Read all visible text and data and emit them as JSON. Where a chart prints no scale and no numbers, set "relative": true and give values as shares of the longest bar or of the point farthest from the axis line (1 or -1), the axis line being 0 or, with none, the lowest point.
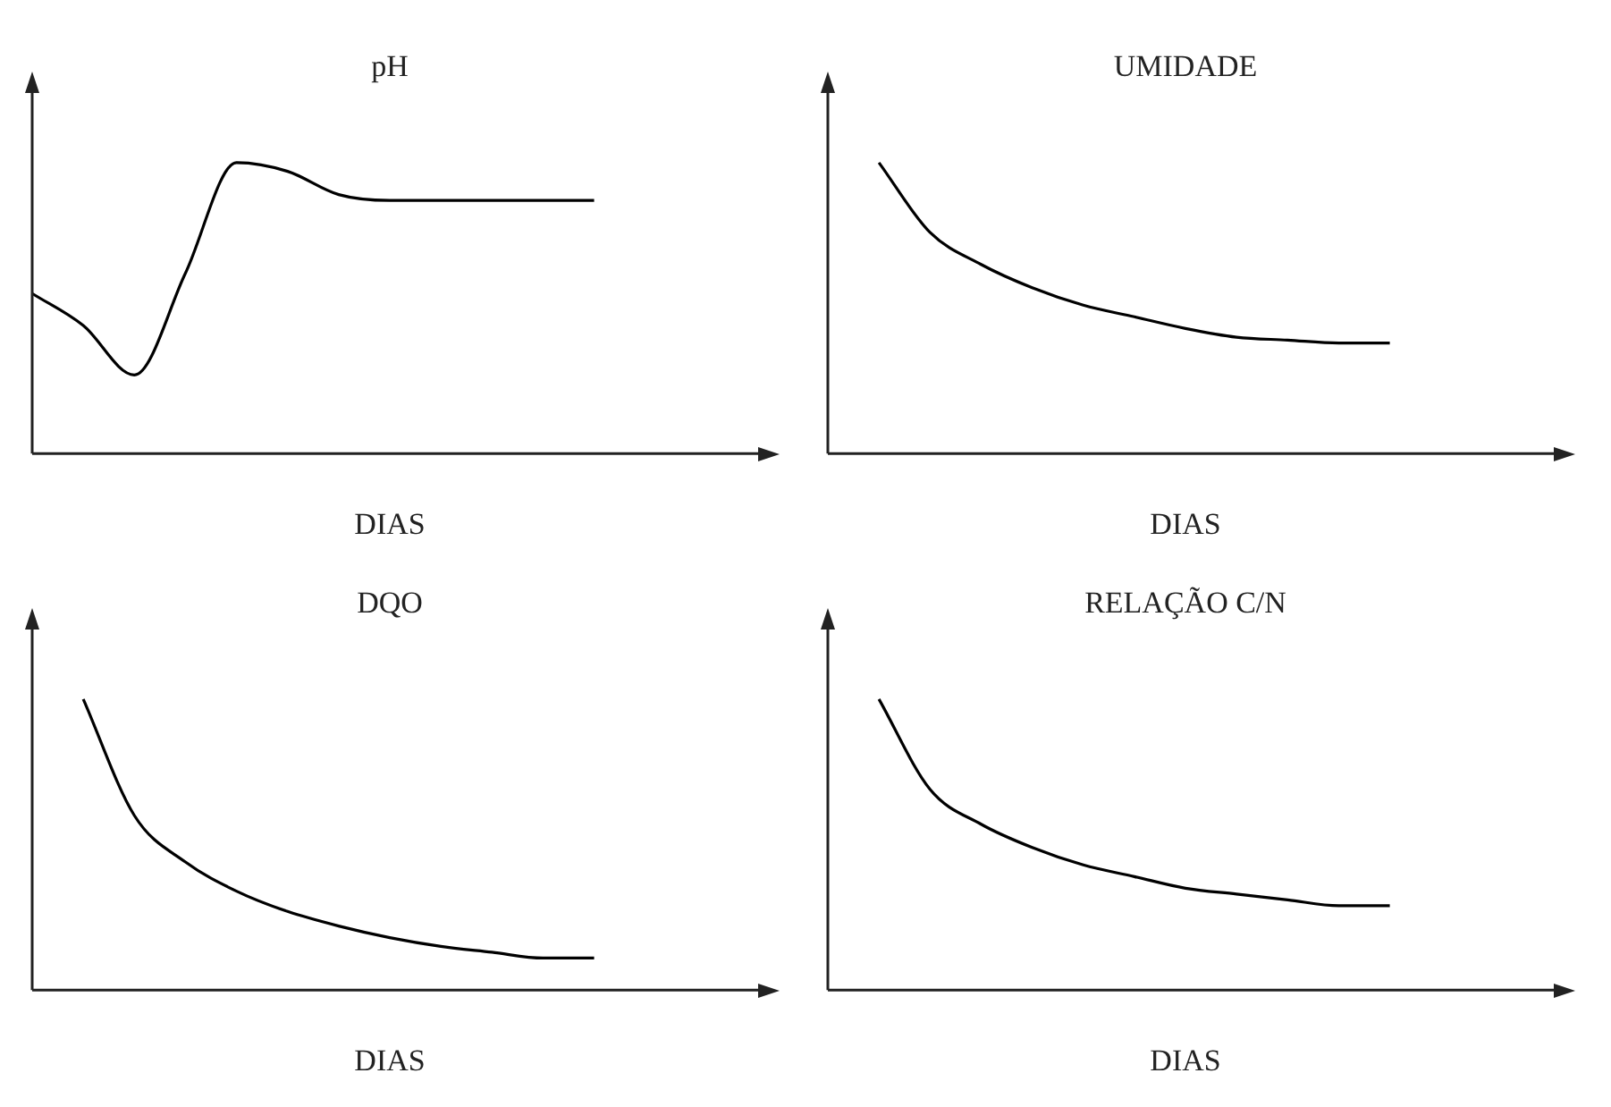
{
  "chart_data": [
    {
      "type": "line",
      "title": "pH",
      "xlabel": "DIAS",
      "relative": true,
      "categories": [
        null,
        null,
        null,
        null,
        null,
        null,
        null,
        null,
        null,
        null,
        null,
        null,
        null,
        null,
        null
      ],
      "series": [
        {
          "color": "#000000",
          "values": [
            0.55,
            0.44,
            0.27,
            0.62,
            1,
            0.97,
            0.89,
            0.87,
            0.87,
            0.87,
            0.87,
            0.87,
            null,
            null,
            null
          ]
        }
      ],
      "grid": false,
      "legend": false,
      "marker": "none",
      "line_style": "solid"
    },
    {
      "type": "line",
      "title": "UMIDADE",
      "xlabel": "DIAS",
      "relative": true,
      "categories": [
        null,
        null,
        null,
        null,
        null,
        null,
        null,
        null,
        null,
        null,
        null,
        null,
        null,
        null,
        null
      ],
      "series": [
        {
          "color": "#000000",
          "values": [
            null,
            1,
            0.76,
            0.65,
            0.57,
            0.51,
            0.47,
            0.43,
            0.4,
            0.39,
            0.38,
            0.38,
            null,
            null,
            null
          ]
        }
      ],
      "grid": false,
      "legend": false,
      "marker": "none",
      "line_style": "solid"
    },
    {
      "type": "line",
      "title": "DQO",
      "xlabel": "DIAS",
      "relative": true,
      "categories": [
        null,
        null,
        null,
        null,
        null,
        null,
        null,
        null,
        null,
        null,
        null,
        null,
        null,
        null,
        null
      ],
      "series": [
        {
          "color": "#000000",
          "values": [
            null,
            1,
            0.6,
            0.44,
            0.34,
            0.27,
            0.22,
            0.18,
            0.15,
            0.13,
            0.11,
            0.11,
            null,
            null,
            null
          ]
        }
      ],
      "grid": false,
      "legend": false,
      "marker": "none",
      "line_style": "solid"
    },
    {
      "type": "line",
      "title": "RELAÇÃO C/N",
      "xlabel": "DIAS",
      "relative": true,
      "categories": [
        null,
        null,
        null,
        null,
        null,
        null,
        null,
        null,
        null,
        null,
        null,
        null,
        null,
        null,
        null
      ],
      "series": [
        {
          "color": "#000000",
          "values": [
            null,
            1,
            0.69,
            0.57,
            0.49,
            0.43,
            0.39,
            0.35,
            0.33,
            0.31,
            0.29,
            0.29,
            null,
            null,
            null
          ]
        }
      ],
      "grid": false,
      "legend": false,
      "marker": "none",
      "line_style": "solid"
    }
  ]
}
